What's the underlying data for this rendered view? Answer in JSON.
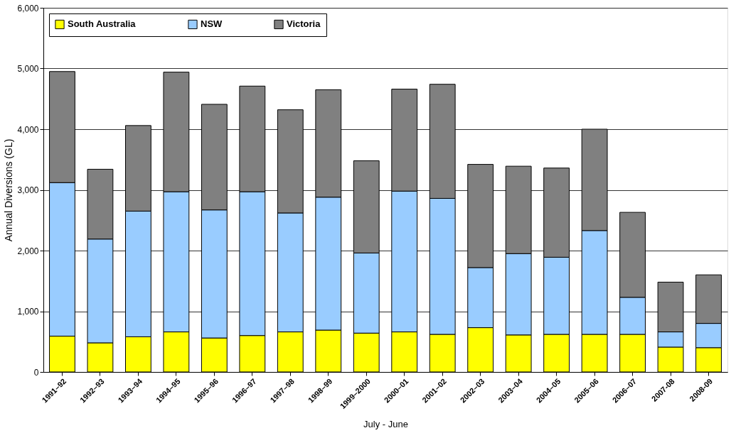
{
  "chart_data": {
    "type": "bar",
    "stacked": true,
    "xlabel": "July - June",
    "ylabel": "Annual Diversions (GL)",
    "categories": [
      "1991–92",
      "1992–93",
      "1993–94",
      "1994–95",
      "1995–96",
      "1996–97",
      "1997–98",
      "1998–99",
      "1999–2000",
      "2000–01",
      "2001–02",
      "2002–03",
      "2003–04",
      "2004–05",
      "2005–06",
      "2006–07",
      "2007-08",
      "2008-09"
    ],
    "series": [
      {
        "name": "South Australia",
        "color": "#ffff00",
        "values": [
          590,
          480,
          580,
          660,
          560,
          600,
          660,
          690,
          640,
          660,
          620,
          730,
          610,
          620,
          620,
          620,
          410,
          400
        ]
      },
      {
        "name": "NSW",
        "color": "#99ccff",
        "values": [
          2530,
          1710,
          2070,
          2310,
          2110,
          2370,
          1960,
          2190,
          1320,
          2320,
          2240,
          990,
          1340,
          1270,
          1710,
          610,
          250,
          400
        ]
      },
      {
        "name": "Victoria",
        "color": "#808080",
        "values": [
          1830,
          1150,
          1410,
          1970,
          1740,
          1740,
          1700,
          1770,
          1520,
          1680,
          1880,
          1700,
          1440,
          1470,
          1670,
          1400,
          820,
          800
        ]
      }
    ],
    "ylim": [
      0,
      6000
    ],
    "yticks": [
      0,
      {
        "value": 1000,
        "label": "1,000"
      },
      {
        "value": 2000,
        "label": "2,000"
      },
      {
        "value": 3000,
        "label": "3,000"
      },
      {
        "value": 4000,
        "label": "4,000"
      },
      {
        "value": 5000,
        "label": "5,000"
      },
      {
        "value": 6000,
        "label": "6,000"
      }
    ],
    "grid": "y",
    "legend": "top left"
  }
}
